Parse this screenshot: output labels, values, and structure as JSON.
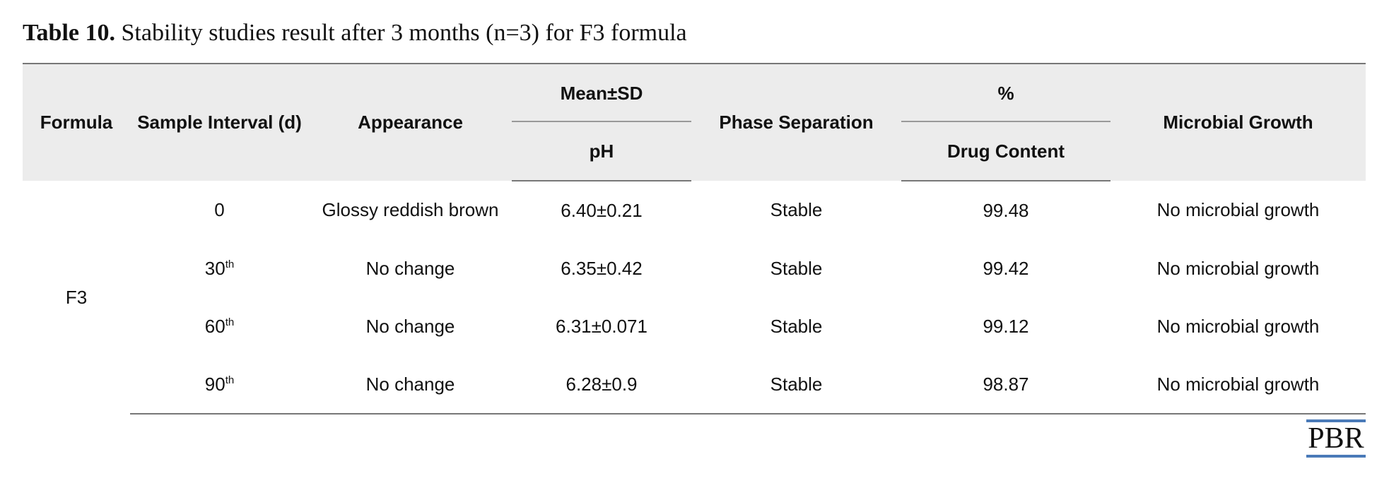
{
  "caption": {
    "label": "Table 10.",
    "text": " Stability studies result after 3 months (n=3) for F3 formula"
  },
  "table": {
    "headers": {
      "formula": "Formula",
      "sample_interval": "Sample Interval (d)",
      "appearance": "Appearance",
      "ph_top": "Mean±SD",
      "ph_bottom": "pH",
      "phase_separation": "Phase Separation",
      "drug_top": "%",
      "drug_bottom": "Drug Content",
      "microbial": "Microbial Growth"
    },
    "formula_value": "F3",
    "rows": [
      {
        "interval": "0",
        "suffix": "",
        "appearance": "Glossy reddish brown",
        "ph": "6.40±0.21",
        "phase": "Stable",
        "drug": "99.48",
        "microbial": "No microbial growth"
      },
      {
        "interval": "30",
        "suffix": "th",
        "appearance": "No change",
        "ph": "6.35±0.42",
        "phase": "Stable",
        "drug": "99.42",
        "microbial": "No microbial growth"
      },
      {
        "interval": "60",
        "suffix": "th",
        "appearance": "No change",
        "ph": "6.31±0.071",
        "phase": "Stable",
        "drug": "99.12",
        "microbial": "No microbial growth"
      },
      {
        "interval": "90",
        "suffix": "th",
        "appearance": "No change",
        "ph": "6.28±0.9",
        "phase": "Stable",
        "drug": "98.87",
        "microbial": "No microbial growth"
      }
    ]
  },
  "logo": {
    "text": "PBR",
    "accent_color": "#4a7ab8"
  }
}
